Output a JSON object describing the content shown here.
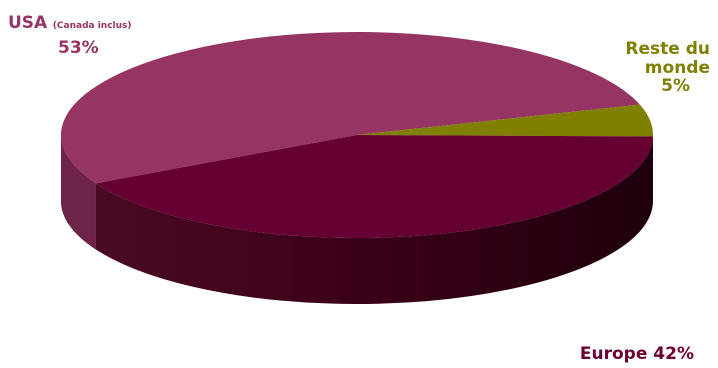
{
  "chart_data": {
    "type": "pie",
    "style": "3d",
    "slices": [
      {
        "label": "USA",
        "sublabel": "(Canada inclus)",
        "value": 53,
        "pct_text": "53%",
        "color": "#963563"
      },
      {
        "label": "Reste du monde",
        "label_line1": "Reste du",
        "label_line2": "monde",
        "value": 5,
        "pct_text": "5%",
        "color": "#808000"
      },
      {
        "label": "Europe",
        "value": 42,
        "pct_text": "42%",
        "color": "#670032"
      }
    ]
  }
}
